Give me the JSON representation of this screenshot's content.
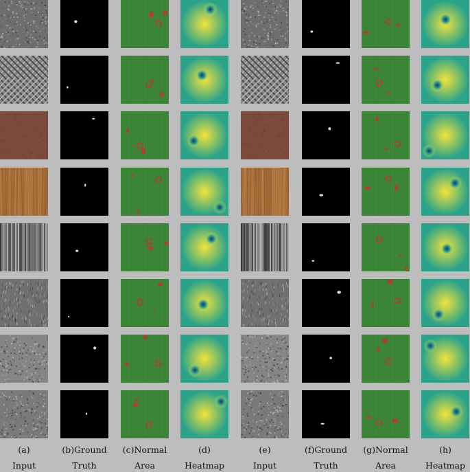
{
  "columns": [
    {
      "label": "(a)",
      "sub": "Input",
      "kind": "input"
    },
    {
      "label": "(b)Ground",
      "sub": "Truth",
      "kind": "truth"
    },
    {
      "label": "(c)Normal",
      "sub": "Area",
      "kind": "normal"
    },
    {
      "label": "(d)",
      "sub": "Heatmap",
      "kind": "heatmap"
    },
    {
      "label": "(e)",
      "sub": "Input",
      "kind": "input"
    },
    {
      "label": "(f)Ground",
      "sub": "Truth",
      "kind": "truth"
    },
    {
      "label": "(g)Normal",
      "sub": "Area",
      "kind": "normal"
    },
    {
      "label": "(h)",
      "sub": "Heatmap",
      "kind": "heatmap"
    }
  ],
  "rows": [
    {
      "texture": "grey-fabric",
      "base": "#6e6e6e"
    },
    {
      "texture": "grid-mesh",
      "base": "#8a8a8a"
    },
    {
      "texture": "leather",
      "base": "#7a4a3a"
    },
    {
      "texture": "wood",
      "base": "#a8703a"
    },
    {
      "texture": "striped-fabric",
      "base": "#5e5e5e"
    },
    {
      "texture": "noisy-fabric",
      "base": "#707070"
    },
    {
      "texture": "soft-fabric",
      "base": "#858585"
    },
    {
      "texture": "speckle-fabric",
      "base": "#7a7a7a"
    }
  ],
  "colors": {
    "background": "#bdbdbd",
    "normal_green": "#3f8a3a",
    "anomaly_red": "#c8322d",
    "heat_low": "#2a2a7a",
    "heat_mid": "#2aa38a",
    "heat_high": "#f2e33a"
  }
}
